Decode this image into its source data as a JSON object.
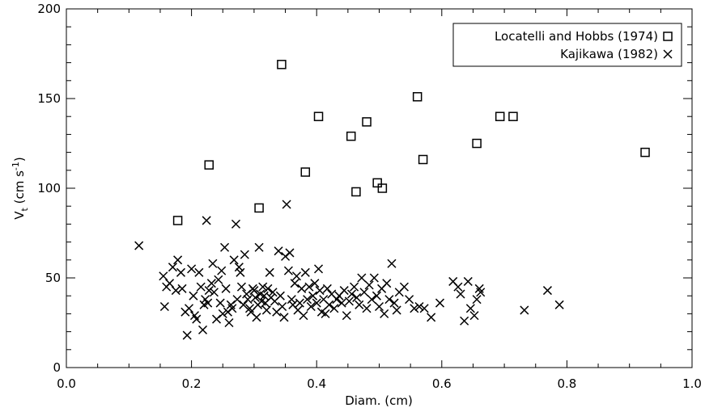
{
  "chart_data": {
    "type": "scatter",
    "xlabel": "Diam. (cm)",
    "ylabel": {
      "main": "V",
      "sub": "t",
      "units_pre": " (cm s",
      "units_sup": "-1",
      "units_post": ")"
    },
    "xlim": [
      0.0,
      1.0
    ],
    "ylim": [
      0,
      200
    ],
    "x_ticks": [
      "0.0",
      "0.2",
      "0.4",
      "0.6",
      "0.8",
      "1.0"
    ],
    "y_ticks": [
      "0",
      "50",
      "100",
      "150",
      "200"
    ],
    "x_tick_values": [
      0.0,
      0.2,
      0.4,
      0.6,
      0.8,
      1.0
    ],
    "y_tick_values": [
      0,
      50,
      100,
      150,
      200
    ],
    "grid": false,
    "legend_position": "top-right",
    "series": [
      {
        "name": "Locatelli and Hobbs (1974)",
        "marker": "square",
        "points": [
          [
            0.178,
            82
          ],
          [
            0.228,
            113
          ],
          [
            0.308,
            89
          ],
          [
            0.344,
            169
          ],
          [
            0.382,
            109
          ],
          [
            0.403,
            140
          ],
          [
            0.455,
            129
          ],
          [
            0.463,
            98
          ],
          [
            0.48,
            137
          ],
          [
            0.497,
            103
          ],
          [
            0.505,
            100
          ],
          [
            0.561,
            151
          ],
          [
            0.57,
            116
          ],
          [
            0.656,
            125
          ],
          [
            0.693,
            140
          ],
          [
            0.714,
            140
          ],
          [
            0.925,
            120
          ]
        ]
      },
      {
        "name": "Kajikawa (1982)",
        "marker": "x",
        "points": [
          [
            0.116,
            68
          ],
          [
            0.155,
            51
          ],
          [
            0.157,
            34
          ],
          [
            0.16,
            45
          ],
          [
            0.165,
            47
          ],
          [
            0.17,
            56
          ],
          [
            0.175,
            43
          ],
          [
            0.178,
            60
          ],
          [
            0.183,
            53
          ],
          [
            0.185,
            44
          ],
          [
            0.19,
            31
          ],
          [
            0.193,
            18
          ],
          [
            0.196,
            33
          ],
          [
            0.2,
            55
          ],
          [
            0.203,
            40
          ],
          [
            0.205,
            29
          ],
          [
            0.208,
            27
          ],
          [
            0.212,
            53
          ],
          [
            0.215,
            45
          ],
          [
            0.218,
            21
          ],
          [
            0.22,
            35
          ],
          [
            0.222,
            38
          ],
          [
            0.224,
            82
          ],
          [
            0.226,
            36
          ],
          [
            0.228,
            43
          ],
          [
            0.232,
            47
          ],
          [
            0.234,
            58
          ],
          [
            0.236,
            42
          ],
          [
            0.24,
            27
          ],
          [
            0.243,
            49
          ],
          [
            0.246,
            36
          ],
          [
            0.248,
            54
          ],
          [
            0.25,
            30
          ],
          [
            0.253,
            67
          ],
          [
            0.255,
            44
          ],
          [
            0.258,
            31
          ],
          [
            0.26,
            25
          ],
          [
            0.263,
            35
          ],
          [
            0.265,
            33
          ],
          [
            0.268,
            60
          ],
          [
            0.271,
            80
          ],
          [
            0.273,
            38
          ],
          [
            0.276,
            56
          ],
          [
            0.278,
            53
          ],
          [
            0.28,
            45
          ],
          [
            0.283,
            35
          ],
          [
            0.285,
            63
          ],
          [
            0.288,
            41
          ],
          [
            0.29,
            38
          ],
          [
            0.293,
            33
          ],
          [
            0.295,
            31
          ],
          [
            0.298,
            44
          ],
          [
            0.3,
            43
          ],
          [
            0.302,
            39
          ],
          [
            0.304,
            28
          ],
          [
            0.306,
            35
          ],
          [
            0.308,
            67
          ],
          [
            0.31,
            41
          ],
          [
            0.312,
            37
          ],
          [
            0.314,
            45
          ],
          [
            0.316,
            40
          ],
          [
            0.318,
            36
          ],
          [
            0.32,
            32
          ],
          [
            0.322,
            44
          ],
          [
            0.325,
            53
          ],
          [
            0.327,
            39
          ],
          [
            0.33,
            42
          ],
          [
            0.333,
            37
          ],
          [
            0.336,
            31
          ],
          [
            0.339,
            65
          ],
          [
            0.342,
            40
          ],
          [
            0.345,
            34
          ],
          [
            0.348,
            28
          ],
          [
            0.35,
            62
          ],
          [
            0.352,
            91
          ],
          [
            0.355,
            54
          ],
          [
            0.357,
            64
          ],
          [
            0.36,
            38
          ],
          [
            0.362,
            35
          ],
          [
            0.365,
            47
          ],
          [
            0.368,
            51
          ],
          [
            0.37,
            32
          ],
          [
            0.373,
            36
          ],
          [
            0.376,
            44
          ],
          [
            0.379,
            29
          ],
          [
            0.382,
            53
          ],
          [
            0.385,
            38
          ],
          [
            0.388,
            45
          ],
          [
            0.391,
            34
          ],
          [
            0.394,
            40
          ],
          [
            0.397,
            47
          ],
          [
            0.4,
            36
          ],
          [
            0.403,
            55
          ],
          [
            0.405,
            43
          ],
          [
            0.408,
            31
          ],
          [
            0.411,
            38
          ],
          [
            0.414,
            30
          ],
          [
            0.417,
            44
          ],
          [
            0.42,
            35
          ],
          [
            0.424,
            41
          ],
          [
            0.428,
            33
          ],
          [
            0.432,
            38
          ],
          [
            0.436,
            40
          ],
          [
            0.44,
            36
          ],
          [
            0.444,
            43
          ],
          [
            0.448,
            29
          ],
          [
            0.452,
            37
          ],
          [
            0.456,
            41
          ],
          [
            0.46,
            45
          ],
          [
            0.464,
            39
          ],
          [
            0.468,
            35
          ],
          [
            0.472,
            50
          ],
          [
            0.476,
            42
          ],
          [
            0.48,
            33
          ],
          [
            0.484,
            46
          ],
          [
            0.488,
            38
          ],
          [
            0.492,
            50
          ],
          [
            0.496,
            40
          ],
          [
            0.5,
            34
          ],
          [
            0.504,
            44
          ],
          [
            0.508,
            30
          ],
          [
            0.512,
            47
          ],
          [
            0.516,
            38
          ],
          [
            0.52,
            58
          ],
          [
            0.524,
            36
          ],
          [
            0.528,
            32
          ],
          [
            0.532,
            42
          ],
          [
            0.54,
            45
          ],
          [
            0.548,
            38
          ],
          [
            0.556,
            33
          ],
          [
            0.564,
            34
          ],
          [
            0.572,
            33
          ],
          [
            0.583,
            28
          ],
          [
            0.597,
            36
          ],
          [
            0.618,
            48
          ],
          [
            0.626,
            45
          ],
          [
            0.63,
            41
          ],
          [
            0.636,
            26
          ],
          [
            0.642,
            48
          ],
          [
            0.646,
            33
          ],
          [
            0.652,
            29
          ],
          [
            0.656,
            38
          ],
          [
            0.66,
            44
          ],
          [
            0.662,
            42
          ],
          [
            0.732,
            32
          ],
          [
            0.769,
            43
          ],
          [
            0.788,
            35
          ]
        ]
      }
    ]
  }
}
